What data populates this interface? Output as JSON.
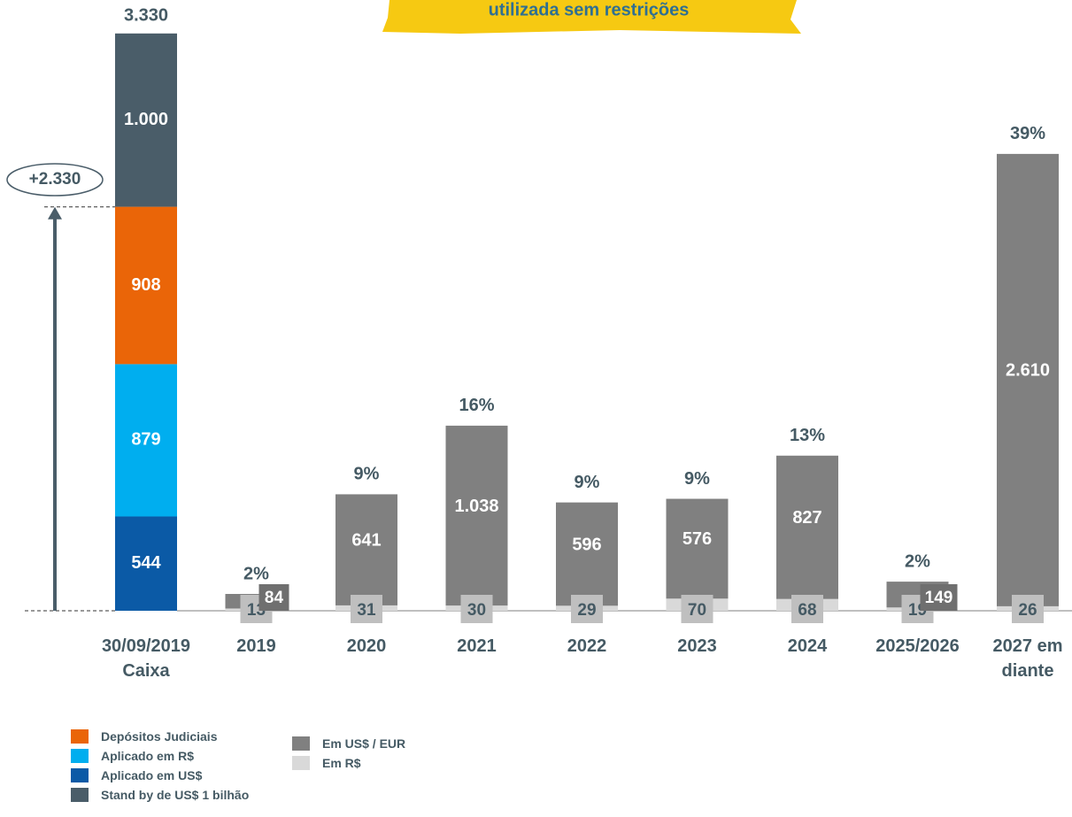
{
  "chart_data": {
    "type": "bar",
    "banner_text": "utilizada sem restrições",
    "categories": [
      "30/09/2019 Caixa",
      "2019",
      "2020",
      "2021",
      "2022",
      "2023",
      "2024",
      "2025/2026",
      "2027 em diante"
    ],
    "series": [
      {
        "name": "Aplicado em US$",
        "color": "#0b5aa6",
        "values": [
          544,
          null,
          null,
          null,
          null,
          null,
          null,
          null,
          null
        ]
      },
      {
        "name": "Aplicado em R$",
        "color": "#00aeef",
        "values": [
          879,
          null,
          null,
          null,
          null,
          null,
          null,
          null,
          null
        ]
      },
      {
        "name": "Depósitos Judiciais",
        "color": "#ea6508",
        "values": [
          908,
          null,
          null,
          null,
          null,
          null,
          null,
          null,
          null
        ]
      },
      {
        "name": "Stand by de US$ 1 bilhão",
        "color": "#4a5d69",
        "values": [
          1000,
          null,
          null,
          null,
          null,
          null,
          null,
          null,
          null
        ],
        "value_labels": [
          "1.000",
          null,
          null,
          null,
          null,
          null,
          null,
          null,
          null
        ]
      },
      {
        "name": "Em R$",
        "color": "#d9d9d9",
        "values": [
          null,
          13,
          31,
          30,
          29,
          70,
          68,
          19,
          26
        ]
      },
      {
        "name": "Em US$ / EUR",
        "color": "#808080",
        "values": [
          null,
          84,
          641,
          1038,
          596,
          576,
          827,
          149,
          2610
        ],
        "value_labels": [
          null,
          "84",
          "641",
          "1.038",
          "596",
          "576",
          "827",
          "149",
          "2.610"
        ]
      }
    ],
    "cash_total": 3330,
    "cash_total_label": "3.330",
    "cash_increase": {
      "value": 2330,
      "label": "+2.330"
    },
    "shares": [
      null,
      2,
      9,
      16,
      9,
      9,
      13,
      2,
      39
    ],
    "share_labels": [
      null,
      "2%",
      "9%",
      "16%",
      "9%",
      "9%",
      "13%",
      "2%",
      "39%"
    ],
    "ylim": [
      0,
      3330
    ]
  }
}
